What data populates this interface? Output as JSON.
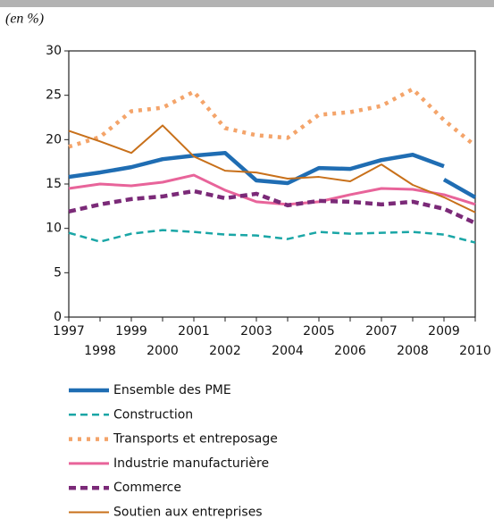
{
  "chart_data": {
    "type": "line",
    "y_label": "(en %)",
    "x": [
      1997,
      1998,
      1999,
      2000,
      2001,
      2002,
      2003,
      2004,
      2005,
      2006,
      2007,
      2008,
      2009,
      2010
    ],
    "xlim": [
      1997,
      2010
    ],
    "xticks": [
      1997,
      1998,
      1999,
      2000,
      2001,
      2002,
      2003,
      2004,
      2005,
      2006,
      2007,
      2008,
      2009,
      2010
    ],
    "ylim": [
      0,
      30
    ],
    "yticks": [
      0,
      5,
      10,
      15,
      20,
      25,
      30
    ],
    "series": [
      {
        "name": "Ensemble des PME",
        "color": "#1f6db3",
        "width": 4.5,
        "dash": "solid",
        "x": [
          1997,
          1998,
          1999,
          2000,
          2001,
          2002,
          2003,
          2004,
          2005,
          2006,
          2007,
          2008,
          2009,
          2009,
          2009,
          2010
        ],
        "values": [
          15.8,
          16.3,
          16.9,
          17.8,
          18.2,
          18.5,
          15.4,
          15.1,
          16.8,
          16.7,
          17.7,
          18.3,
          17.0,
          null,
          15.5,
          13.5
        ]
      },
      {
        "name": "Construction",
        "color": "#1aa6a6",
        "width": 2.5,
        "dash": "dashed",
        "values": [
          9.5,
          8.5,
          9.4,
          9.8,
          9.6,
          9.3,
          9.2,
          8.8,
          9.6,
          9.4,
          9.5,
          9.6,
          9.3,
          8.4
        ]
      },
      {
        "name": "Transports et entreposage",
        "color": "#f4a46a",
        "width": 4.5,
        "dash": "dotted",
        "values": [
          19.2,
          20.3,
          23.2,
          23.6,
          25.4,
          21.3,
          20.5,
          20.2,
          22.8,
          23.1,
          23.8,
          25.7,
          22.2,
          19.3
        ]
      },
      {
        "name": "Industrie manufacturière",
        "color": "#e8649a",
        "width": 3,
        "dash": "solid",
        "values": [
          14.5,
          15.0,
          14.8,
          15.2,
          16.0,
          14.3,
          13.0,
          12.7,
          13.0,
          13.8,
          14.5,
          14.4,
          13.8,
          12.7
        ]
      },
      {
        "name": "Commerce",
        "color": "#7b2a78",
        "width": 4.5,
        "dash": "dashed",
        "values": [
          11.9,
          12.7,
          13.3,
          13.6,
          14.2,
          13.4,
          13.9,
          12.6,
          13.1,
          13.0,
          12.7,
          13.0,
          12.2,
          10.6
        ]
      },
      {
        "name": "Soutien aux entreprises",
        "color": "#c8701a",
        "width": 2,
        "dash": "solid",
        "values": [
          21.0,
          19.8,
          18.5,
          21.6,
          18.1,
          16.5,
          16.3,
          15.6,
          15.8,
          15.3,
          17.2,
          14.9,
          13.5,
          11.8
        ]
      }
    ]
  }
}
